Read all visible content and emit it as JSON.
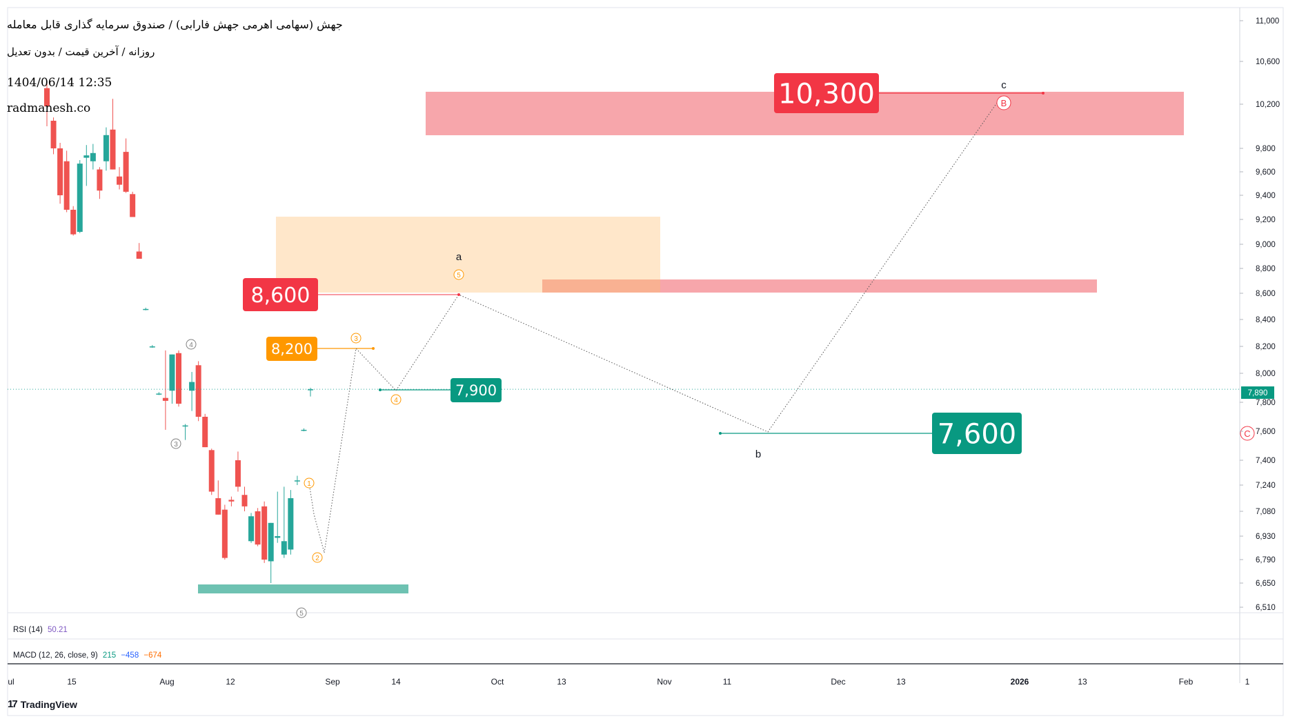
{
  "header": {
    "title": "جهش (سهامی اهرمی جهش فارابی) / صندوق سرمایه گذاری قابل معامله",
    "subtitle": "روزانه / آخرین قیمت / بدون تعدیل",
    "datetime": "1404/06/14 12:35",
    "website": "radmanesh.co"
  },
  "indicators": {
    "rsi": {
      "label": "RSI (14)",
      "value": "50.21",
      "color": "#7e57c2"
    },
    "macd": {
      "label": "MACD (12, 26, close, 9)",
      "values": [
        "215",
        "−458",
        "−674"
      ],
      "colors": [
        "#089981",
        "#2962ff",
        "#ff6d00"
      ]
    }
  },
  "branding": {
    "logo_text": "TradingView",
    "logo_icon": "tradingview-logo-icon"
  },
  "colors": {
    "up": "#26a69a",
    "down": "#ef5350",
    "zone_red": "#f7a1a6",
    "zone_orange": "#ffe4c4",
    "zone_green": "#66bfae",
    "target_red": "#f23645",
    "target_orange": "#ff9800",
    "target_green": "#089981"
  },
  "chart_data": {
    "type": "candlestick",
    "y_axis": {
      "ticks": [
        "11,000",
        "10,600",
        "10,200",
        "9,800",
        "9,600",
        "9,400",
        "9,200",
        "9,000",
        "8,800",
        "8,600",
        "8,400",
        "8,200",
        "8,000",
        "7,800",
        "7,600",
        "7,400",
        "7,240",
        "7,080",
        "6,930",
        "6,790",
        "6,650",
        "6,510"
      ],
      "current_price": "7,890",
      "position": "right"
    },
    "x_axis": {
      "ticks": [
        "ul",
        "15",
        "Aug",
        "12",
        "Sep",
        "14",
        "Oct",
        "13",
        "Nov",
        "11",
        "Dec",
        "13",
        "2026",
        "13",
        "Feb",
        "1"
      ],
      "bold_ticks": [
        "2026"
      ]
    },
    "candles": [
      {
        "o": 10350,
        "h": 10400,
        "l": 10000,
        "c": 10180
      },
      {
        "o": 10050,
        "h": 10080,
        "l": 9750,
        "c": 9800
      },
      {
        "o": 9800,
        "h": 9850,
        "l": 9330,
        "c": 9400
      },
      {
        "o": 9690,
        "h": 9780,
        "l": 9260,
        "c": 9280
      },
      {
        "o": 9280,
        "h": 9310,
        "l": 9070,
        "c": 9080
      },
      {
        "o": 9100,
        "h": 9700,
        "l": 9090,
        "c": 9670
      },
      {
        "o": 9720,
        "h": 9830,
        "l": 9480,
        "c": 9740
      },
      {
        "o": 9690,
        "h": 9840,
        "l": 9620,
        "c": 9760
      },
      {
        "o": 9620,
        "h": 9640,
        "l": 9370,
        "c": 9440
      },
      {
        "o": 9690,
        "h": 9990,
        "l": 9610,
        "c": 9920
      },
      {
        "o": 9970,
        "h": 10250,
        "l": 9620,
        "c": 9620
      },
      {
        "o": 9560,
        "h": 9640,
        "l": 9450,
        "c": 9490
      },
      {
        "o": 9770,
        "h": 9890,
        "l": 9420,
        "c": 9430
      },
      {
        "o": 9410,
        "h": 9430,
        "l": 9220,
        "c": 9220
      },
      {
        "o": 8940,
        "h": 9010,
        "l": 8880,
        "c": 8880
      },
      {
        "o": 8480,
        "h": 8490,
        "l": 8470,
        "c": 8480
      },
      {
        "o": 8200,
        "h": 8210,
        "l": 8190,
        "c": 8200
      },
      {
        "o": 7860,
        "h": 7870,
        "l": 7850,
        "c": 7860
      },
      {
        "o": 7830,
        "h": 8170,
        "l": 7610,
        "c": 7810
      },
      {
        "o": 7880,
        "h": 8140,
        "l": 7790,
        "c": 8140
      },
      {
        "o": 8150,
        "h": 8170,
        "l": 7770,
        "c": 7790
      },
      {
        "o": 7640,
        "h": 7650,
        "l": 7540,
        "c": 7640
      },
      {
        "o": 7880,
        "h": 8010,
        "l": 7740,
        "c": 7940
      },
      {
        "o": 8060,
        "h": 8090,
        "l": 7670,
        "c": 7700
      },
      {
        "o": 7700,
        "h": 7720,
        "l": 7490,
        "c": 7490
      },
      {
        "o": 7470,
        "h": 7480,
        "l": 7180,
        "c": 7200
      },
      {
        "o": 7160,
        "h": 7270,
        "l": 7060,
        "c": 7060
      },
      {
        "o": 7090,
        "h": 7120,
        "l": 6790,
        "c": 6800
      },
      {
        "o": 7150,
        "h": 7170,
        "l": 7110,
        "c": 7140
      },
      {
        "o": 7400,
        "h": 7460,
        "l": 7200,
        "c": 7230
      },
      {
        "o": 7180,
        "h": 7230,
        "l": 7080,
        "c": 7110
      },
      {
        "o": 6900,
        "h": 7070,
        "l": 6890,
        "c": 7050
      },
      {
        "o": 7080,
        "h": 7100,
        "l": 6870,
        "c": 6880
      },
      {
        "o": 7110,
        "h": 7140,
        "l": 6770,
        "c": 6790
      },
      {
        "o": 6780,
        "h": 7010,
        "l": 6650,
        "c": 7010
      },
      {
        "o": 6920,
        "h": 7200,
        "l": 6890,
        "c": 6930
      },
      {
        "o": 6820,
        "h": 7230,
        "l": 6800,
        "c": 6900
      },
      {
        "o": 6850,
        "h": 7210,
        "l": 6820,
        "c": 7160
      },
      {
        "o": 7270,
        "h": 7300,
        "l": 7240,
        "c": 7270
      },
      {
        "o": 7610,
        "h": 7620,
        "l": 7600,
        "c": 7610
      },
      {
        "o": 7890,
        "h": 7900,
        "l": 7840,
        "c": 7890
      }
    ],
    "zones": [
      {
        "name": "target-zone-top",
        "from": 9970,
        "to": 10320,
        "color": "#f7a1a6"
      },
      {
        "name": "supply-zone-orange",
        "from": 8600,
        "to": 9220,
        "color": "#ffe4c4"
      },
      {
        "name": "resistance-zone-pink",
        "from": 8600,
        "to": 8700,
        "color": "#f7a1a6"
      },
      {
        "name": "support-zone-green",
        "from": 6590,
        "to": 6630,
        "color": "#66bfae"
      }
    ],
    "price_labels": [
      {
        "text": "10,300",
        "value": 10300,
        "color": "#f23645",
        "size": "large"
      },
      {
        "text": "8,600",
        "value": 8600,
        "color": "#f23645",
        "size": "medium"
      },
      {
        "text": "8,200",
        "value": 8200,
        "color": "#ff9800",
        "size": "small"
      },
      {
        "text": "7,900",
        "value": 7900,
        "color": "#089981",
        "size": "small"
      },
      {
        "text": "7,600",
        "value": 7600,
        "color": "#089981",
        "size": "large"
      }
    ],
    "wave_labels": [
      {
        "text": "a",
        "style": "letter"
      },
      {
        "text": "b",
        "style": "letter"
      },
      {
        "text": "c",
        "style": "letter"
      },
      {
        "text": "B",
        "style": "circle-red"
      },
      {
        "text": "C",
        "style": "circle-red"
      },
      {
        "text": "1",
        "style": "circle-orange"
      },
      {
        "text": "2",
        "style": "circle-orange"
      },
      {
        "text": "3",
        "style": "circle-orange"
      },
      {
        "text": "4",
        "style": "circle-orange"
      },
      {
        "text": "5",
        "style": "circle-orange"
      },
      {
        "text": "3",
        "style": "circle-gray"
      },
      {
        "text": "4",
        "style": "circle-gray"
      },
      {
        "text": "5",
        "style": "circle-gray"
      }
    ],
    "wave_path": [
      8600,
      8190,
      7900,
      8600,
      7600,
      10300
    ]
  }
}
